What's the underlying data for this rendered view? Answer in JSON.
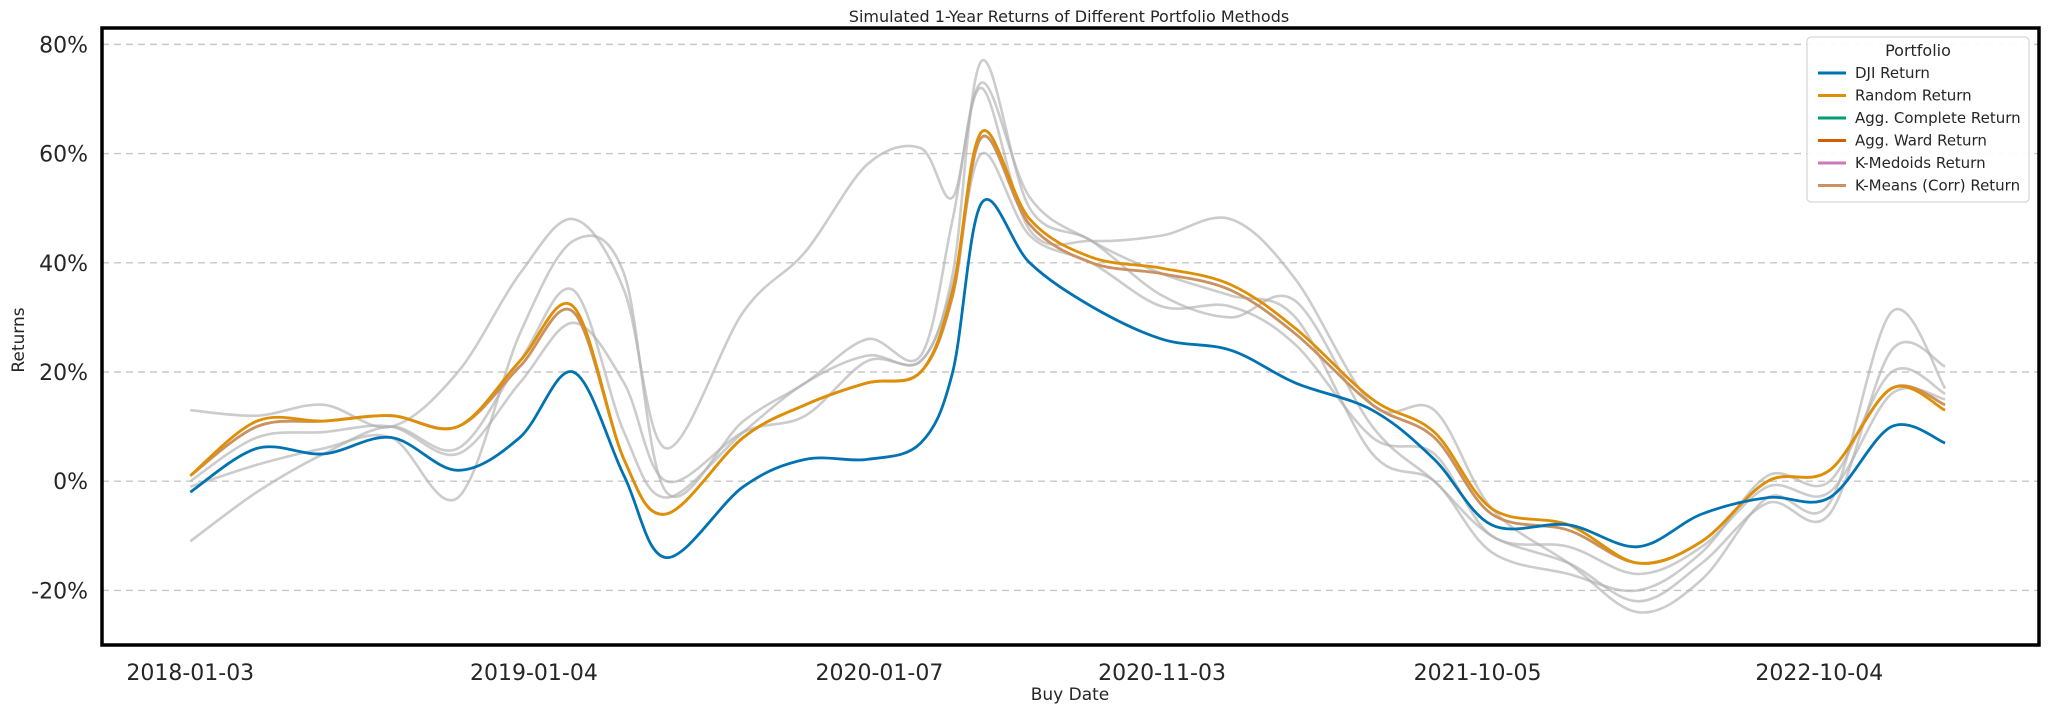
{
  "chart_data": {
    "type": "line",
    "title": "Simulated 1-Year Returns of Different Portfolio Methods",
    "xlabel": "Buy Date",
    "ylabel": "Returns",
    "x_ticks": [
      "2018-01-03",
      "2019-01-04",
      "2020-01-07",
      "2020-11-03",
      "2021-10-05",
      "2022-10-04"
    ],
    "y_ticks": [
      -20,
      0,
      20,
      40,
      60,
      80
    ],
    "y_tick_labels": [
      "-20%",
      "0%",
      "20%",
      "40%",
      "60%",
      "80%"
    ],
    "xlim": [
      "2017-10-01",
      "2023-05-26"
    ],
    "ylim": [
      -30,
      83
    ],
    "grid": "horizontal dashed",
    "legend": {
      "title": "Portfolio",
      "placement": "upper right",
      "entries": [
        {
          "name": "DJI Return",
          "color": "#0173b2"
        },
        {
          "name": "Random Return",
          "color": "#de8f05"
        },
        {
          "name": "Agg. Complete Return",
          "color": "#029e73"
        },
        {
          "name": "Agg. Ward Return",
          "color": "#d55e00"
        },
        {
          "name": "K-Medoids Return",
          "color": "#cc78bc"
        },
        {
          "name": "K-Means (Corr) Return",
          "color": "#ca9161"
        }
      ]
    },
    "x": [
      "2018-01-03",
      "2018-03-15",
      "2018-05-25",
      "2018-08-05",
      "2018-10-15",
      "2018-12-20",
      "2019-02-15",
      "2019-04-10",
      "2019-05-25",
      "2019-08-15",
      "2019-10-20",
      "2019-12-25",
      "2020-02-20",
      "2020-03-25",
      "2020-04-25",
      "2020-06-15",
      "2020-08-20",
      "2020-11-03",
      "2021-01-15",
      "2021-03-25",
      "2021-06-15",
      "2021-08-20",
      "2021-10-20",
      "2022-01-10",
      "2022-03-25",
      "2022-06-01",
      "2022-08-10",
      "2022-10-15",
      "2022-12-20",
      "2023-02-15"
    ],
    "series": [
      {
        "name": "DJI Return",
        "color": "#0173b2",
        "values": [
          -2,
          6,
          5,
          8,
          2,
          8,
          20,
          1,
          -14,
          -1,
          4,
          4,
          7,
          20,
          51,
          40,
          32,
          26,
          24,
          18,
          13,
          4,
          -8,
          -8,
          -12,
          -6,
          -3,
          -3,
          10,
          7
        ]
      },
      {
        "name": "Random Return",
        "color": "#de8f05",
        "values": [
          1,
          11,
          11,
          12,
          10,
          22,
          32,
          4,
          -6,
          8,
          14,
          18,
          20,
          35,
          64,
          48,
          41,
          39,
          36,
          28,
          15,
          9,
          -5,
          -8,
          -15,
          -11,
          0,
          2,
          17,
          13
        ]
      },
      {
        "name": "K-Means (Corr) Return",
        "color": "#ca9161",
        "values": [
          1,
          10,
          11,
          12,
          10,
          21,
          31,
          4,
          -6,
          8,
          14,
          18,
          20,
          34,
          63,
          47,
          40,
          38,
          35,
          27,
          14,
          8,
          -6,
          -9,
          -15,
          -11,
          0,
          2,
          17,
          14
        ]
      }
    ],
    "background_series_color": "#b0b0b0",
    "background_series": [
      [
        -11,
        -2,
        5,
        10,
        6,
        22,
        35,
        9,
        -3,
        9,
        18,
        23,
        22,
        38,
        77,
        50,
        44,
        34,
        30,
        33,
        10,
        0,
        -10,
        -15,
        -22,
        -15,
        -4,
        -6,
        24,
        21
      ],
      [
        13,
        12,
        14,
        10,
        20,
        38,
        48,
        35,
        6,
        31,
        42,
        58,
        61,
        52,
        72,
        46,
        44,
        45,
        48,
        37,
        14,
        13,
        -5,
        -15,
        -24,
        -18,
        -3,
        -4,
        31,
        17
      ],
      [
        -1,
        3,
        6,
        8,
        -3,
        27,
        44,
        38,
        -2,
        11,
        18,
        26,
        23,
        48,
        73,
        52,
        44,
        38,
        34,
        30,
        5,
        0,
        -13,
        -17,
        -20,
        -13,
        1,
        0,
        20,
        16
      ],
      [
        0,
        8,
        9,
        10,
        5,
        18,
        29,
        18,
        0,
        9,
        12,
        22,
        22,
        36,
        60,
        45,
        40,
        32,
        32,
        25,
        8,
        5,
        -10,
        -12,
        -17,
        -12,
        -1,
        -2,
        16,
        15
      ]
    ]
  }
}
